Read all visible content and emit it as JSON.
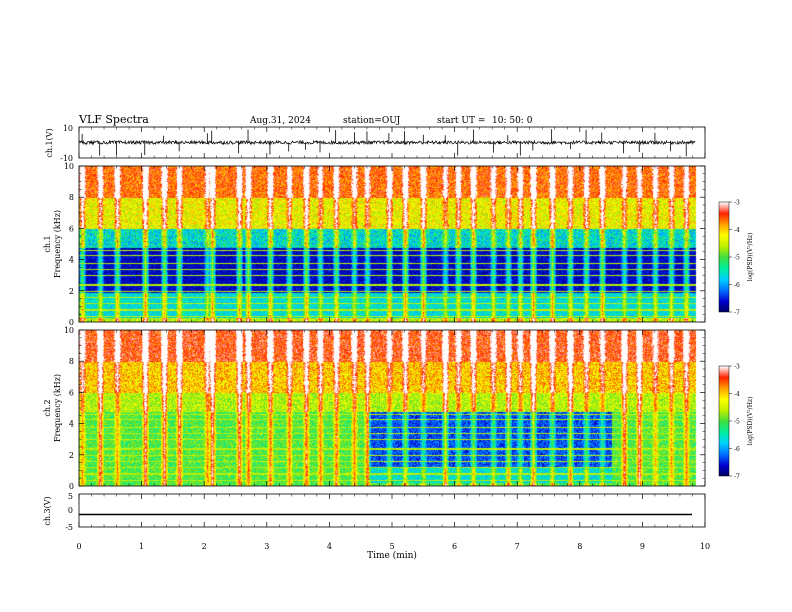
{
  "header": {
    "title": "VLF Spectra",
    "date": "Aug.31, 2024",
    "station": "station=OUJ",
    "start_label": "start  UT  =",
    "start_time": "10: 50: 0"
  },
  "chart_data": [
    {
      "type": "line",
      "name": "ch1-waveform",
      "ylabel": "ch.1(V)",
      "ylim": [
        -10,
        10
      ],
      "ytick_labels": [
        "10",
        "-10"
      ],
      "xlim": [
        0,
        10
      ],
      "baseline": 0
    },
    {
      "type": "heatmap",
      "name": "ch1-spectrogram",
      "ylabel": "ch.1\nFrequency  (kHz)",
      "ylabel_top": "ch.1",
      "ylabel_bottom": "Frequency  (kHz)",
      "ylim": [
        0,
        10
      ],
      "ytick_labels": [
        "0",
        "2",
        "4",
        "6",
        "8",
        "10"
      ],
      "xlim": [
        0,
        9.85
      ],
      "colorbar": {
        "label": "log(PSD)(V²/Hz)",
        "range": [
          -7,
          -3
        ],
        "ticks": [
          "-3",
          "-4",
          "-5",
          "-6",
          "-7"
        ]
      },
      "bursts_min": [
        0.05,
        0.33,
        0.6,
        1.05,
        1.35,
        1.6,
        2.05,
        2.12,
        2.55,
        2.7,
        3.05,
        3.35,
        3.62,
        3.85,
        4.1,
        4.4,
        4.6,
        4.95,
        5.2,
        5.5,
        5.85,
        6.05,
        6.3,
        6.62,
        6.85,
        7.05,
        7.25,
        7.55,
        7.85,
        8.1,
        8.35,
        8.7,
        8.95,
        9.2,
        9.45,
        9.7
      ]
    },
    {
      "type": "heatmap",
      "name": "ch2-spectrogram",
      "ylabel_top": "ch.2",
      "ylabel_bottom": "Frequency  (kHz)",
      "ylim": [
        0,
        10
      ],
      "ytick_labels": [
        "0",
        "2",
        "4",
        "6",
        "8",
        "10"
      ],
      "xlim": [
        0,
        9.85
      ],
      "colorbar": {
        "label": "log(PSD)(V²/Hz)",
        "range": [
          -7,
          -3
        ],
        "ticks": [
          "-3",
          "-4",
          "-5",
          "-6",
          "-7"
        ]
      },
      "quiet_band_start_min": 4.62,
      "quiet_band_end_min": 8.5,
      "bursts_min": [
        0.05,
        0.33,
        0.6,
        1.05,
        1.35,
        1.6,
        2.05,
        2.12,
        2.55,
        2.7,
        3.05,
        3.35,
        3.62,
        3.85,
        4.1,
        4.4,
        4.6,
        4.95,
        5.2,
        5.5,
        5.85,
        6.05,
        6.3,
        6.62,
        6.85,
        7.05,
        7.25,
        7.55,
        7.85,
        8.1,
        8.35,
        8.7,
        8.95,
        9.2,
        9.45,
        9.7
      ]
    },
    {
      "type": "line",
      "name": "ch3-waveform",
      "ylabel": "ch.3(V)",
      "ylim": [
        -5,
        5
      ],
      "ytick_labels": [
        "5",
        "0",
        "-5"
      ],
      "xlim": [
        0,
        10
      ],
      "value": -1.2
    }
  ],
  "xaxis": {
    "label": "Time  (min)",
    "ticks": [
      0,
      1,
      2,
      3,
      4,
      5,
      6,
      7,
      8,
      9,
      10
    ],
    "tick_labels": [
      "0",
      "1",
      "2",
      "3",
      "4",
      "5",
      "6",
      "7",
      "8",
      "9",
      "10"
    ]
  },
  "colors": {
    "axis": "#000000",
    "colormap": [
      "#000060",
      "#0000d0",
      "#0070ff",
      "#00d0ff",
      "#00f0a0",
      "#40e040",
      "#c0f000",
      "#ffff00",
      "#ffa000",
      "#ff2000",
      "#ffffff"
    ]
  }
}
